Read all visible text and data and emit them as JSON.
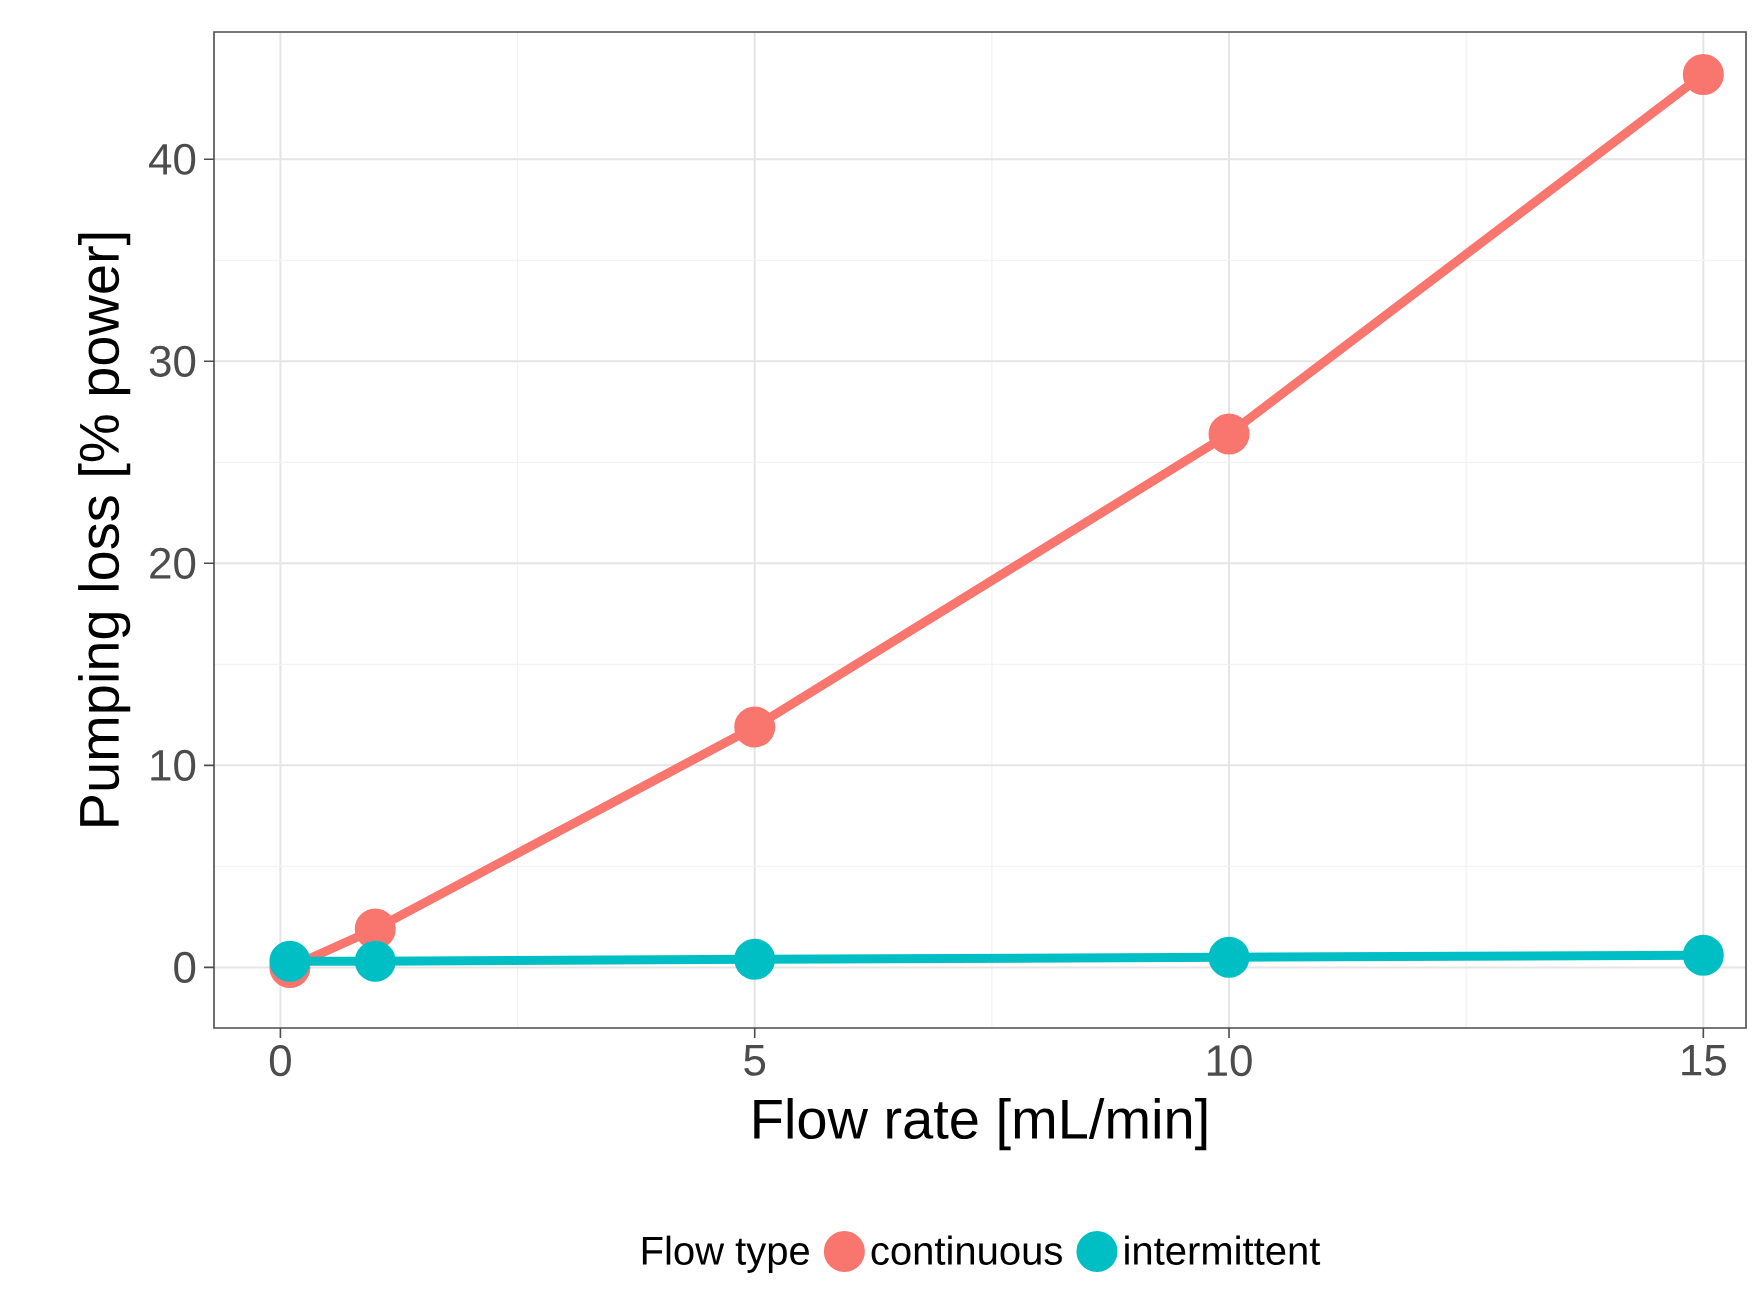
{
  "chart_data": {
    "type": "line",
    "xlabel": "Flow rate [mL/min]",
    "ylabel": "Pumping loss [% power]",
    "legend_title": "Flow type",
    "x": [
      0.1,
      1,
      5,
      10,
      15
    ],
    "series": [
      {
        "name": "continuous",
        "color": "#f8766d",
        "values": [
          0,
          1.9,
          11.9,
          26.4,
          44.2
        ]
      },
      {
        "name": "intermittent",
        "color": "#00bfc4",
        "values": [
          0.3,
          0.3,
          0.4,
          0.5,
          0.6
        ]
      }
    ],
    "xlim": [
      -0.7,
      15.45
    ],
    "ylim": [
      -3,
      46.3
    ],
    "xticks": [
      0,
      5,
      10,
      15
    ],
    "yticks": [
      0,
      10,
      20,
      30,
      40
    ],
    "grid": true,
    "legend": "bottom",
    "marker": "circle",
    "line_style": "solid"
  }
}
